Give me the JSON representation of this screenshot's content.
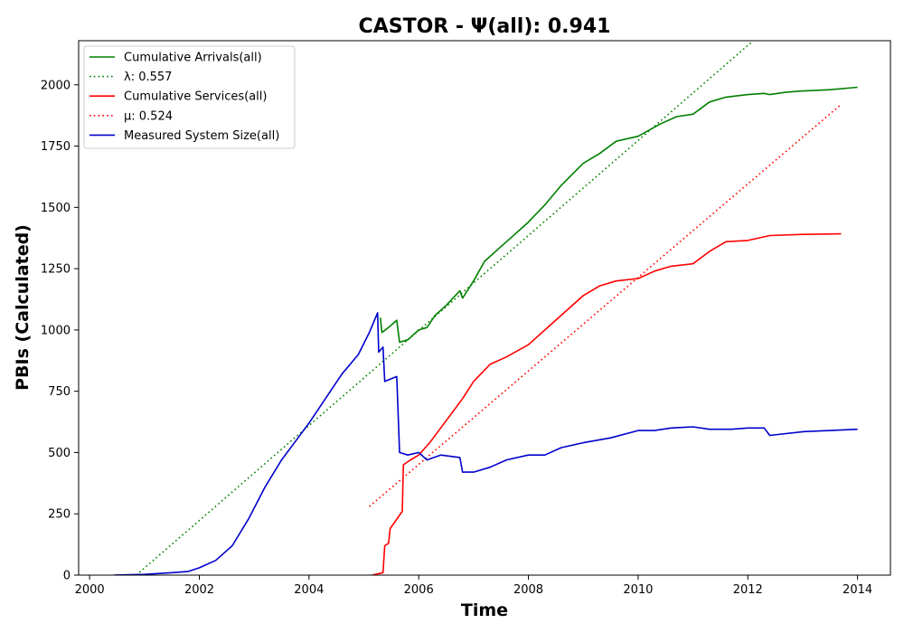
{
  "chart_data": {
    "type": "line",
    "title": "CASTOR -  Ψ(all): 0.941",
    "xlabel": "Time",
    "ylabel": "PBIs (Calculated)",
    "xlim": [
      1999.8,
      2014.6
    ],
    "ylim": [
      0,
      2180
    ],
    "x_ticks": [
      2000,
      2002,
      2004,
      2006,
      2008,
      2010,
      2012,
      2014
    ],
    "y_ticks": [
      0,
      250,
      500,
      750,
      1000,
      1250,
      1500,
      1750,
      2000
    ],
    "grid": false,
    "legend_position": "upper-left",
    "series": [
      {
        "name": "Cumulative Arrivals(all)",
        "style": "solid",
        "color": "#008000",
        "points": [
          [
            2005.3,
            1050
          ],
          [
            2005.33,
            990
          ],
          [
            2005.45,
            1010
          ],
          [
            2005.6,
            1040
          ],
          [
            2005.65,
            950
          ],
          [
            2005.8,
            960
          ],
          [
            2006.0,
            1000
          ],
          [
            2006.15,
            1010
          ],
          [
            2006.3,
            1060
          ],
          [
            2006.5,
            1100
          ],
          [
            2006.75,
            1160
          ],
          [
            2006.8,
            1130
          ],
          [
            2007.0,
            1200
          ],
          [
            2007.2,
            1280
          ],
          [
            2007.5,
            1340
          ],
          [
            2007.75,
            1390
          ],
          [
            2008.0,
            1440
          ],
          [
            2008.3,
            1510
          ],
          [
            2008.6,
            1590
          ],
          [
            2009.0,
            1680
          ],
          [
            2009.3,
            1720
          ],
          [
            2009.6,
            1770
          ],
          [
            2010.0,
            1790
          ],
          [
            2010.4,
            1840
          ],
          [
            2010.7,
            1870
          ],
          [
            2011.0,
            1880
          ],
          [
            2011.3,
            1930
          ],
          [
            2011.6,
            1950
          ],
          [
            2012.0,
            1960
          ],
          [
            2012.3,
            1965
          ],
          [
            2012.4,
            1960
          ],
          [
            2012.7,
            1970
          ],
          [
            2013.0,
            1975
          ],
          [
            2013.5,
            1980
          ],
          [
            2014.0,
            1990
          ]
        ]
      },
      {
        "name": "λ: 0.557",
        "style": "dotted",
        "color": "#008000",
        "points": [
          [
            2000.85,
            0
          ],
          [
            2012.1,
            2180
          ]
        ]
      },
      {
        "name": "Cumulative Services(all)",
        "style": "solid",
        "color": "#ff0000",
        "points": [
          [
            2005.15,
            0
          ],
          [
            2005.35,
            10
          ],
          [
            2005.38,
            120
          ],
          [
            2005.45,
            130
          ],
          [
            2005.48,
            190
          ],
          [
            2005.7,
            260
          ],
          [
            2005.72,
            450
          ],
          [
            2005.85,
            470
          ],
          [
            2006.0,
            490
          ],
          [
            2006.2,
            540
          ],
          [
            2006.4,
            600
          ],
          [
            2006.6,
            660
          ],
          [
            2006.8,
            720
          ],
          [
            2007.0,
            790
          ],
          [
            2007.3,
            860
          ],
          [
            2007.6,
            890
          ],
          [
            2008.0,
            940
          ],
          [
            2008.3,
            1000
          ],
          [
            2008.6,
            1060
          ],
          [
            2009.0,
            1140
          ],
          [
            2009.3,
            1180
          ],
          [
            2009.6,
            1200
          ],
          [
            2010.0,
            1210
          ],
          [
            2010.3,
            1240
          ],
          [
            2010.6,
            1260
          ],
          [
            2011.0,
            1270
          ],
          [
            2011.3,
            1320
          ],
          [
            2011.6,
            1360
          ],
          [
            2012.0,
            1365
          ],
          [
            2012.4,
            1385
          ],
          [
            2013.0,
            1390
          ],
          [
            2013.7,
            1392
          ]
        ]
      },
      {
        "name": "μ: 0.524",
        "style": "dotted",
        "color": "#ff0000",
        "points": [
          [
            2005.1,
            280
          ],
          [
            2013.7,
            1920
          ]
        ]
      },
      {
        "name": "Measured System Size(all)",
        "style": "solid",
        "color": "#0000cc",
        "points": [
          [
            2000.45,
            0
          ],
          [
            2001.0,
            3
          ],
          [
            2001.5,
            10
          ],
          [
            2001.8,
            15
          ],
          [
            2002.0,
            30
          ],
          [
            2002.3,
            60
          ],
          [
            2002.6,
            120
          ],
          [
            2002.9,
            230
          ],
          [
            2003.2,
            360
          ],
          [
            2003.5,
            470
          ],
          [
            2003.8,
            560
          ],
          [
            2004.0,
            620
          ],
          [
            2004.3,
            720
          ],
          [
            2004.6,
            820
          ],
          [
            2004.9,
            900
          ],
          [
            2005.1,
            990
          ],
          [
            2005.25,
            1070
          ],
          [
            2005.27,
            910
          ],
          [
            2005.35,
            930
          ],
          [
            2005.38,
            790
          ],
          [
            2005.6,
            810
          ],
          [
            2005.65,
            500
          ],
          [
            2005.8,
            490
          ],
          [
            2006.0,
            500
          ],
          [
            2006.15,
            470
          ],
          [
            2006.4,
            490
          ],
          [
            2006.75,
            480
          ],
          [
            2006.8,
            420
          ],
          [
            2007.0,
            420
          ],
          [
            2007.3,
            440
          ],
          [
            2007.6,
            470
          ],
          [
            2008.0,
            490
          ],
          [
            2008.3,
            490
          ],
          [
            2008.6,
            520
          ],
          [
            2009.0,
            540
          ],
          [
            2009.5,
            560
          ],
          [
            2010.0,
            590
          ],
          [
            2010.3,
            590
          ],
          [
            2010.6,
            600
          ],
          [
            2011.0,
            605
          ],
          [
            2011.3,
            595
          ],
          [
            2011.7,
            595
          ],
          [
            2012.0,
            600
          ],
          [
            2012.3,
            600
          ],
          [
            2012.4,
            570
          ],
          [
            2013.0,
            585
          ],
          [
            2013.5,
            590
          ],
          [
            2014.0,
            595
          ]
        ]
      }
    ]
  }
}
